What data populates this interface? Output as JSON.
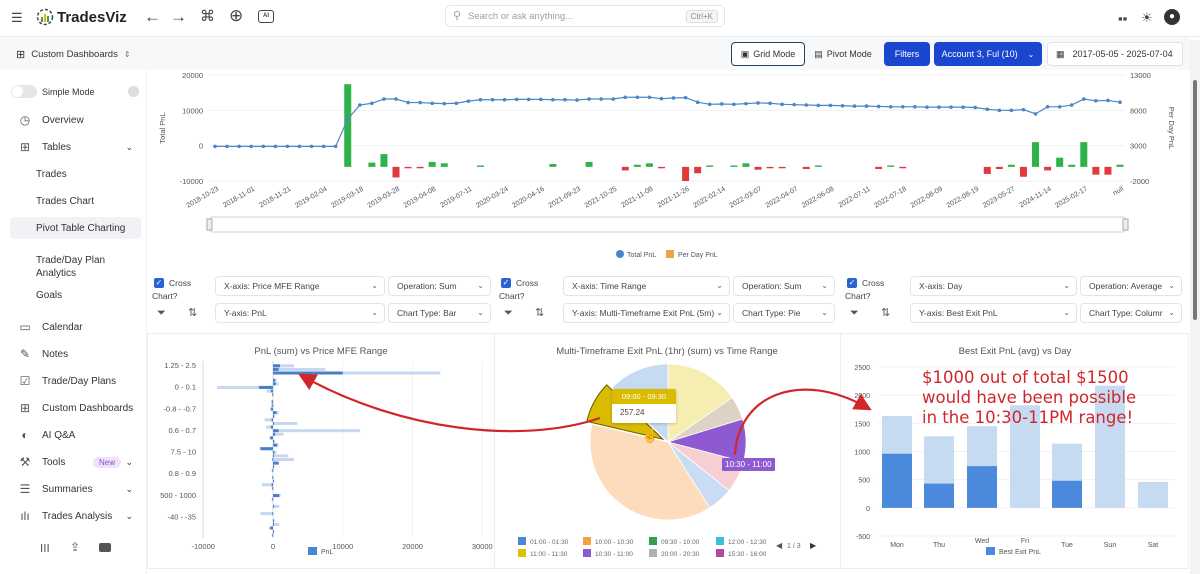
{
  "header": {
    "logo_text": "TradesViz",
    "search_placeholder": "Search or ask anything...",
    "search_shortcut": "Ctrl+K"
  },
  "subheader": {
    "dashboard_selector": "Custom Dashboards",
    "grid_mode": "Grid Mode",
    "pivot_mode": "Pivot Mode",
    "filters": "Filters",
    "account": "Account 3, Ful (10)",
    "date_range": "2017-05-05 - 2025-07-04"
  },
  "sidebar": {
    "simple_mode": "Simple Mode",
    "simple_mode_on": false,
    "active_item": "Pivot Table Charting",
    "items": [
      {
        "label": "Overview",
        "icon": "pie-clock-icon"
      },
      {
        "label": "Tables",
        "icon": "table-icon",
        "expandable": true
      },
      {
        "label": "Trades"
      },
      {
        "label": "Trades Chart"
      },
      {
        "label": "Pivot Table Charting"
      },
      {
        "label": "Trade/Day Plan Analytics"
      },
      {
        "label": "Goals"
      },
      {
        "label": "Calendar",
        "icon": "calendar-icon"
      },
      {
        "label": "Notes",
        "icon": "pencil-icon"
      },
      {
        "label": "Trade/Day Plans",
        "icon": "clipboard-icon"
      },
      {
        "label": "Custom Dashboards",
        "icon": "grid-icon"
      },
      {
        "label": "AI Q&A",
        "icon": "brain-icon"
      },
      {
        "label": "Tools",
        "icon": "wrench-icon",
        "badge": "New",
        "expandable": true
      },
      {
        "label": "Summaries",
        "icon": "list-icon",
        "expandable": true
      },
      {
        "label": "Trades Analysis",
        "icon": "bar-icon",
        "expandable": true
      }
    ]
  },
  "panels": [
    {
      "cross_label": "Cross",
      "chart_label": "Chart?",
      "checked": true,
      "x_axis": "X-axis: Price MFE Range",
      "operation": "Operation: Sum",
      "y_axis": "Y-axis: PnL",
      "chart_type": "Chart Type: Bar"
    },
    {
      "cross_label": "Cross",
      "chart_label": "Chart?",
      "checked": true,
      "x_axis": "X-axis: Time Range",
      "operation": "Operation: Sum",
      "y_axis": "Y-axis: Multi-Timeframe Exit PnL (5m)",
      "chart_type": "Chart Type: Pie"
    },
    {
      "cross_label": "Cross",
      "chart_label": "Chart?",
      "checked": true,
      "x_axis": "X-axis: Day",
      "operation": "Operation: Average",
      "y_axis": "Y-axis: Best Exit PnL",
      "chart_type": "Chart Type: Columr"
    }
  ],
  "annotation": {
    "lines": [
      "$1000 out of total $1500",
      "would have been possible",
      "in the 10:30-11PM range!"
    ],
    "color": "#d0262c"
  },
  "colors": {
    "accent": "#1b46cf",
    "positive": "#2db34a",
    "negative": "#e0393e",
    "line": "#4a86c8"
  },
  "chart_data": [
    {
      "type": "line+bar",
      "ylabel_left": "Total PnL",
      "ylabel_right": "Per Day PnL",
      "y_left": {
        "range": [
          -10000,
          20000
        ],
        "ticks": [
          "20000",
          "10000",
          "0",
          "-10000"
        ]
      },
      "y_right": {
        "range": [
          -2000,
          13000
        ],
        "ticks": [
          "13000",
          "8000",
          "3000",
          "-2000"
        ]
      },
      "x_tick_labels": [
        "2018-10-23",
        "2018-11-01",
        "2018-11-21",
        "2019-02-04",
        "2019-03-18",
        "2019-03-28",
        "2019-04-08",
        "2019-07-11",
        "2020-03-24",
        "2020-04-16",
        "2021-09-23",
        "2021-10-25",
        "2021-11-08",
        "2021-11-26",
        "2022-02-14",
        "2022-03-07",
        "2022-04-07",
        "2022-06-08",
        "2022-07-11",
        "2022-07-18",
        "2022-08-09",
        "2022-08-19",
        "2023-05-27",
        "2024-11-14",
        "2025-02-17",
        "null"
      ],
      "legend": [
        "Total PnL",
        "Per Day PnL"
      ],
      "grid": true,
      "series": [
        {
          "name": "Total PnL",
          "type": "line",
          "values": [
            -200,
            -200,
            -200,
            -200,
            -200,
            -200,
            -200,
            -200,
            -200,
            -200,
            -200,
            7500,
            11500,
            12000,
            13200,
            13200,
            12200,
            12200,
            12000,
            11900,
            12000,
            12600,
            13000,
            13000,
            13000,
            13100,
            13100,
            13100,
            13000,
            13000,
            12900,
            13200,
            13200,
            13200,
            13700,
            13700,
            13700,
            13300,
            13500,
            13600,
            12300,
            11700,
            11800,
            11700,
            11900,
            12100,
            12000,
            11700,
            11600,
            11500,
            11400,
            11400,
            11300,
            11200,
            11200,
            11100,
            11000,
            11000,
            11000,
            10900,
            10900,
            10900,
            10900,
            10800,
            10300,
            10000,
            10000,
            10200,
            9000,
            11000,
            11000,
            11500,
            13200,
            12700,
            12800,
            12300
          ]
        },
        {
          "name": "Per Day PnL",
          "type": "bar",
          "values": [
            0,
            0,
            0,
            0,
            0,
            0,
            0,
            0,
            0,
            0,
            0,
            11700,
            0,
            600,
            1800,
            -1500,
            -200,
            -200,
            700,
            500,
            0,
            0,
            200,
            0,
            0,
            0,
            0,
            0,
            400,
            0,
            0,
            700,
            0,
            0,
            -500,
            300,
            500,
            -200,
            0,
            -2000,
            -900,
            200,
            0,
            200,
            500,
            -400,
            -200,
            -200,
            0,
            -300,
            200,
            0,
            0,
            0,
            0,
            -300,
            200,
            -200,
            0,
            0,
            0,
            0,
            0,
            0,
            -1000,
            -300,
            300,
            -1400,
            3500,
            -500,
            1300,
            300,
            3500,
            -1100,
            -1100,
            300
          ]
        }
      ]
    },
    {
      "type": "bar",
      "orientation": "horizontal",
      "title": "PnL (sum) vs Price MFE Range",
      "xlim": [
        -10000,
        30000
      ],
      "x_ticks": [
        "-10000",
        "0",
        "10000",
        "20000",
        "30000"
      ],
      "y_tick_labels": [
        "1.25 - 2.5",
        "0 - 0.1",
        "-0.8 - -0.7",
        "0.6 - 0.7",
        "7.5 - 10",
        "0.8 - 0.9",
        "500 - 1000",
        "-40 - -35"
      ],
      "legend": [
        "PnL"
      ],
      "series": [
        {
          "name": "PnL",
          "values": [
            1000,
            800,
            10000,
            0,
            300,
            400,
            -2000,
            -300,
            -100,
            0,
            -200,
            -100,
            -300,
            500,
            200,
            -200,
            100,
            -300,
            800,
            300,
            -400,
            100,
            600,
            -1800,
            200,
            100,
            -100,
            800,
            100,
            -100,
            0,
            -100,
            100,
            -200,
            -100,
            0,
            900,
            -100,
            0,
            100,
            0,
            -100,
            0,
            100,
            100,
            -400,
            100,
            -100
          ]
        },
        {
          "values": [
            3000,
            7500,
            24000,
            0,
            500,
            800,
            -8000,
            -900,
            -100,
            0,
            -200,
            -300,
            -400,
            800,
            0,
            -1200,
            3500,
            -1000,
            12500,
            1500,
            -500,
            300,
            800,
            -1900,
            500,
            2200,
            3000,
            900,
            200,
            -200,
            0,
            -100,
            100,
            -1600,
            -200,
            0,
            1100,
            -200,
            0,
            900,
            0,
            -1800,
            0,
            200,
            900,
            -600,
            100,
            -200
          ]
        }
      ]
    },
    {
      "type": "pie",
      "title": "Multi-Timeframe Exit PnL (1hr) (sum) vs Time Range",
      "slices": [
        {
          "label": "11:00 - 11:30",
          "value": 461,
          "color": "#f5eeb0",
          "highlighted": false
        },
        {
          "label": "20:00 - 20:30",
          "value": 145,
          "color": "#ddd3c5",
          "highlighted": false
        },
        {
          "label": "10:30 - 11:00",
          "value": 265,
          "color": "#8e5ad1",
          "highlighted": true
        },
        {
          "label": "15:30 - 16:00",
          "value": 199,
          "color": "#f7cfd2",
          "highlighted": false
        },
        {
          "label": "12:00 - 12:30",
          "value": 158,
          "color": "#c9dcf3",
          "highlighted": false
        },
        {
          "label": "10:00 - 10:30",
          "value": 1129,
          "color": "#fcdcbc",
          "highlighted": false
        },
        {
          "label": "09:00 - 09:30",
          "value": 257.24,
          "color": "#d9bc00",
          "highlighted": true
        },
        {
          "label": "01:00 - 01:30",
          "value": 382,
          "color": "#c6daf2",
          "highlighted": false
        }
      ],
      "tooltip": {
        "label": "09:00 - 09:30",
        "value": "257.24"
      },
      "slice_label": "10:30 - 11:00",
      "legend": [
        {
          "label": "01:00 - 01:30",
          "color": "#4a86d4"
        },
        {
          "label": "10:00 - 10:30",
          "color": "#f5a142"
        },
        {
          "label": "09:30 - 10:00",
          "color": "#3a9a4e"
        },
        {
          "label": "12:00 - 12:30",
          "color": "#3bbfdc"
        },
        {
          "label": "11:00 - 11:30",
          "color": "#d9c300"
        },
        {
          "label": "10:30 - 11:00",
          "color": "#8e5ad1"
        },
        {
          "label": "20:00 - 20:30",
          "color": "#b0b0b0"
        },
        {
          "label": "15:30 - 16:00",
          "color": "#b04aa6"
        }
      ],
      "legend_page": "1 / 3"
    },
    {
      "type": "bar",
      "title": "Best Exit PnL (avg) vs Day",
      "categories": [
        "Mon",
        "Thu",
        "Wed",
        "Fri",
        "Tue",
        "Sun",
        "Sat"
      ],
      "ylim": [
        -500,
        2500
      ],
      "y_ticks": [
        "2500",
        "2000",
        "1500",
        "1000",
        "500",
        "0",
        "-500"
      ],
      "legend": [
        "Best Exit PnL"
      ],
      "series": [
        {
          "values": [
            1630,
            1270,
            1450,
            1820,
            1140,
            2170,
            460
          ],
          "color": "#c6daf2"
        },
        {
          "name": "Best Exit PnL",
          "values": [
            960,
            430,
            740,
            0,
            480,
            0,
            0
          ],
          "color": "#4a89dc"
        }
      ]
    }
  ]
}
